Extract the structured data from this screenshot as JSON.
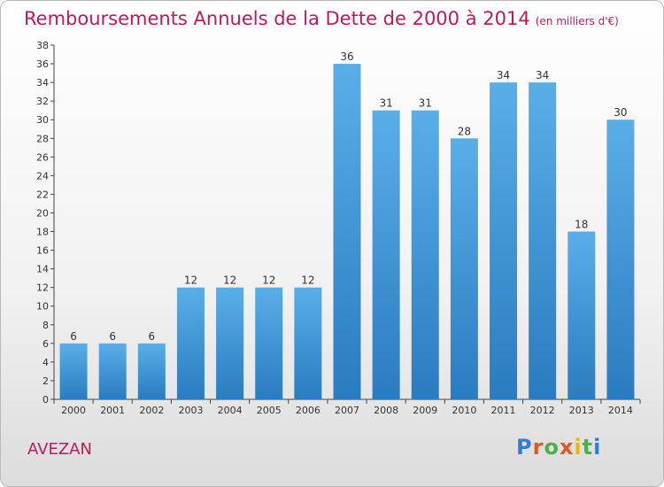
{
  "header": {
    "title": "Remboursements Annuels de la Dette de 2000 à 2014",
    "unit": "(en milliers d'€)"
  },
  "footer": {
    "town": "AVEZAN",
    "brand": "Proxiti"
  },
  "colors": {
    "bar_light": "#5aaee8",
    "bar_dark": "#2a7cc0",
    "title": "#c2185b"
  },
  "chart_data": {
    "type": "bar",
    "title": "Remboursements Annuels de la Dette de 2000 à 2014",
    "ylabel": "en milliers d'€",
    "categories": [
      "2000",
      "2001",
      "2002",
      "2003",
      "2004",
      "2005",
      "2006",
      "2007",
      "2008",
      "2009",
      "2010",
      "2011",
      "2012",
      "2013",
      "2014"
    ],
    "values": [
      6,
      6,
      6,
      12,
      12,
      12,
      12,
      36,
      31,
      31,
      28,
      34,
      34,
      18,
      30
    ],
    "ylim": [
      0,
      38
    ],
    "ytick_step": 2,
    "grid": false,
    "data_labels": true
  }
}
